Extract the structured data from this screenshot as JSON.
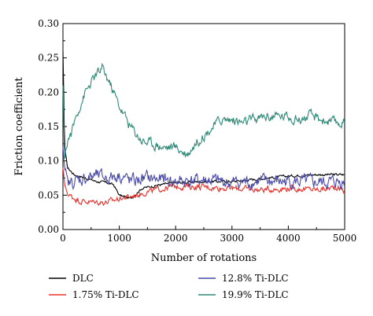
{
  "chart_data": {
    "type": "line",
    "xlabel": "Number of rotations",
    "ylabel": "Friction coefficient",
    "xlim": [
      0,
      5000
    ],
    "ylim": [
      0,
      0.3
    ],
    "x_ticks": [
      "0",
      "1000",
      "2000",
      "3000",
      "4000",
      "5000"
    ],
    "y_ticks": [
      "0.00",
      "0.05",
      "0.10",
      "0.15",
      "0.20",
      "0.25",
      "0.30"
    ],
    "grid": false,
    "legend_position": "bottom",
    "series": [
      {
        "name": "DLC",
        "color": "#000000",
        "points": [
          [
            0,
            0.26
          ],
          [
            30,
            0.12
          ],
          [
            80,
            0.09
          ],
          [
            200,
            0.08
          ],
          [
            400,
            0.075
          ],
          [
            600,
            0.07
          ],
          [
            800,
            0.068
          ],
          [
            900,
            0.065
          ],
          [
            1000,
            0.05
          ],
          [
            1200,
            0.045
          ],
          [
            1400,
            0.06
          ],
          [
            1700,
            0.065
          ],
          [
            2000,
            0.068
          ],
          [
            2500,
            0.07
          ],
          [
            3000,
            0.07
          ],
          [
            3500,
            0.074
          ],
          [
            4000,
            0.078
          ],
          [
            4500,
            0.08
          ],
          [
            5000,
            0.08
          ]
        ]
      },
      {
        "name": "1.75% Ti-DLC",
        "color": "#e8302a",
        "points": [
          [
            0,
            0.09
          ],
          [
            40,
            0.06
          ],
          [
            100,
            0.05
          ],
          [
            300,
            0.042
          ],
          [
            500,
            0.04
          ],
          [
            800,
            0.04
          ],
          [
            1000,
            0.045
          ],
          [
            1200,
            0.048
          ],
          [
            1500,
            0.055
          ],
          [
            1800,
            0.06
          ],
          [
            2000,
            0.063
          ],
          [
            2500,
            0.062
          ],
          [
            3000,
            0.06
          ],
          [
            3500,
            0.058
          ],
          [
            4000,
            0.06
          ],
          [
            4500,
            0.058
          ],
          [
            4900,
            0.062
          ],
          [
            5000,
            0.055
          ]
        ]
      },
      {
        "name": "12.8% Ti-DLC",
        "color": "#4a4aa8",
        "points": [
          [
            0,
            0.12
          ],
          [
            30,
            0.09
          ],
          [
            80,
            0.065
          ],
          [
            200,
            0.07
          ],
          [
            400,
            0.075
          ],
          [
            600,
            0.078
          ],
          [
            800,
            0.075
          ],
          [
            1000,
            0.08
          ],
          [
            1200,
            0.07
          ],
          [
            1500,
            0.075
          ],
          [
            2000,
            0.07
          ],
          [
            2500,
            0.072
          ],
          [
            3000,
            0.068
          ],
          [
            3500,
            0.07
          ],
          [
            4000,
            0.07
          ],
          [
            4500,
            0.068
          ],
          [
            5000,
            0.07
          ]
        ]
      },
      {
        "name": "19.9% Ti-DLC",
        "color": "#2e8a78",
        "points": [
          [
            0,
            0.21
          ],
          [
            30,
            0.1
          ],
          [
            80,
            0.13
          ],
          [
            150,
            0.14
          ],
          [
            250,
            0.17
          ],
          [
            400,
            0.2
          ],
          [
            550,
            0.22
          ],
          [
            700,
            0.235
          ],
          [
            850,
            0.21
          ],
          [
            1000,
            0.18
          ],
          [
            1200,
            0.15
          ],
          [
            1400,
            0.13
          ],
          [
            1600,
            0.125
          ],
          [
            1800,
            0.12
          ],
          [
            2000,
            0.12
          ],
          [
            2200,
            0.11
          ],
          [
            2400,
            0.13
          ],
          [
            2600,
            0.145
          ],
          [
            2800,
            0.16
          ],
          [
            3000,
            0.16
          ],
          [
            3200,
            0.155
          ],
          [
            3400,
            0.16
          ],
          [
            3600,
            0.165
          ],
          [
            3800,
            0.165
          ],
          [
            4000,
            0.165
          ],
          [
            4200,
            0.16
          ],
          [
            4400,
            0.165
          ],
          [
            4600,
            0.16
          ],
          [
            4800,
            0.155
          ],
          [
            5000,
            0.155
          ]
        ]
      }
    ]
  }
}
